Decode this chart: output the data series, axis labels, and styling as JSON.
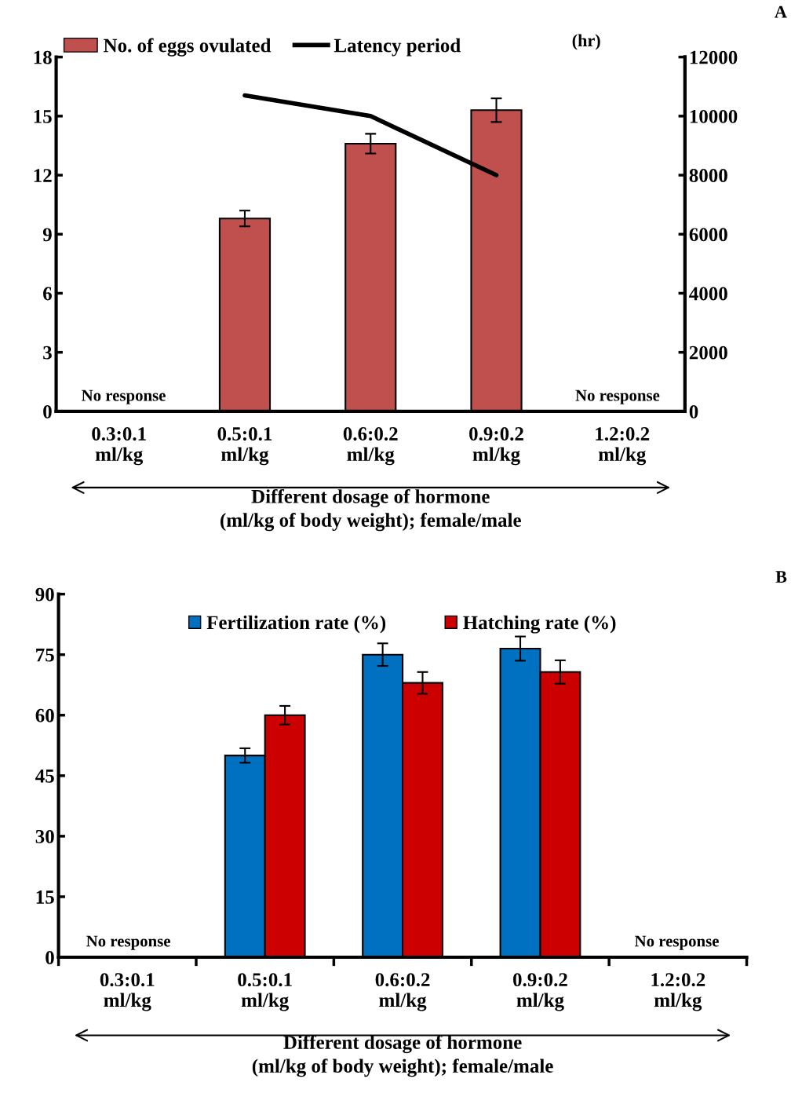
{
  "chart_data": [
    {
      "type": "bar",
      "categories": [
        "0.3:0.1\nml/kg",
        "0.5:0.1\nml/kg",
        "0.6:0.2\nml/kg",
        "0.9:0.2\nml/kg",
        "1.2:0.2\nml/kg"
      ],
      "xlabel": "Different dosage of hormone\n(ml/kg of body weight); female/male",
      "y2label": "(hr)",
      "series": [
        {
          "name": "No. of eggs ovulated",
          "type": "bar",
          "color": "#c0504d",
          "values": [
            null,
            9.8,
            13.6,
            15.3,
            null
          ],
          "errors": [
            null,
            0.4,
            0.5,
            0.6,
            null
          ]
        },
        {
          "name": "Latency period",
          "type": "line",
          "axis": "y2",
          "color": "#000000",
          "values": [
            null,
            10700,
            10000,
            8000,
            null
          ]
        }
      ],
      "ylim": [
        0,
        18
      ],
      "yticks": [
        0,
        3,
        6,
        9,
        12,
        15,
        18
      ],
      "y2lim": [
        0,
        12000
      ],
      "y2ticks": [
        0,
        2000,
        4000,
        6000,
        8000,
        10000,
        12000
      ],
      "grid": false,
      "legend": "top",
      "marker": "none",
      "line_style": "solid",
      "annotations": [
        "No response",
        "No response",
        "A"
      ]
    },
    {
      "type": "bar",
      "categories": [
        "0.3:0.1\nml/kg",
        "0.5:0.1\nml/kg",
        "0.6:0.2\nml/kg",
        "0.9:0.2\nml/kg",
        "1.2:0.2\nml/kg"
      ],
      "xlabel": "Different dosage of hormone\n(ml/kg of body weight); female/male",
      "series": [
        {
          "name": "Fertilization rate (%)",
          "color": "#0070c0",
          "values": [
            null,
            50,
            75,
            76.5,
            null
          ],
          "errors": [
            null,
            1.8,
            2.8,
            3,
            null
          ]
        },
        {
          "name": "Hatching rate (%)",
          "color": "#cc0000",
          "values": [
            null,
            60,
            68,
            70.7,
            null
          ],
          "errors": [
            null,
            2.3,
            2.7,
            2.9,
            null
          ]
        }
      ],
      "ylim": [
        0,
        90
      ],
      "yticks": [
        0,
        15,
        30,
        45,
        60,
        75,
        90
      ],
      "grid": false,
      "legend": "top",
      "annotations": [
        "No response",
        "No response",
        "B"
      ]
    }
  ]
}
